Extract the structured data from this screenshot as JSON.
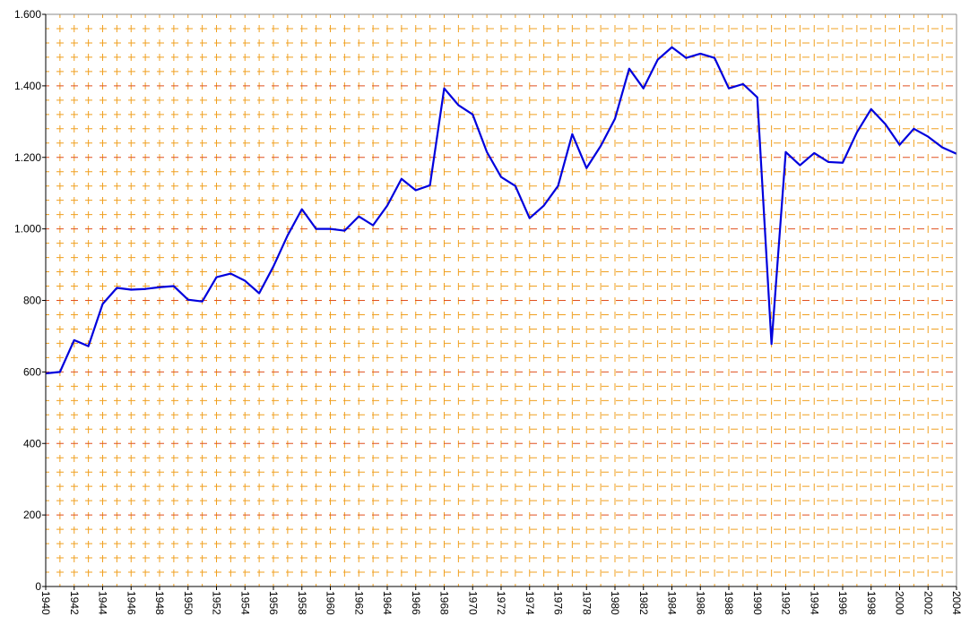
{
  "chart_data": {
    "type": "line",
    "x": [
      1940,
      1941,
      1942,
      1943,
      1944,
      1945,
      1946,
      1947,
      1948,
      1949,
      1950,
      1951,
      1952,
      1953,
      1954,
      1955,
      1956,
      1957,
      1958,
      1959,
      1960,
      1961,
      1962,
      1963,
      1964,
      1965,
      1966,
      1967,
      1968,
      1969,
      1970,
      1971,
      1972,
      1973,
      1974,
      1975,
      1976,
      1977,
      1978,
      1979,
      1980,
      1981,
      1982,
      1983,
      1984,
      1985,
      1986,
      1987,
      1988,
      1989,
      1990,
      1991,
      1992,
      1993,
      1994,
      1995,
      1996,
      1997,
      1998,
      1999,
      2000,
      2001,
      2002,
      2003,
      2004
    ],
    "series": [
      {
        "color": "#0000dd",
        "values": [
          596,
          600,
          689,
          672,
          790,
          835,
          830,
          832,
          837,
          840,
          802,
          797,
          865,
          875,
          855,
          820,
          895,
          982,
          1055,
          1000,
          1000,
          995,
          1035,
          1010,
          1065,
          1140,
          1108,
          1122,
          1393,
          1346,
          1320,
          1215,
          1145,
          1120,
          1030,
          1065,
          1120,
          1265,
          1170,
          1232,
          1308,
          1448,
          1393,
          1473,
          1508,
          1478,
          1490,
          1478,
          1393,
          1405,
          1368,
          678,
          1215,
          1178,
          1212,
          1187,
          1185,
          1270,
          1335,
          1293,
          1235,
          1280,
          1258,
          1228,
          1210
        ]
      }
    ],
    "xlim": [
      1940,
      2004
    ],
    "xticks": [
      1940,
      1942,
      1944,
      1946,
      1948,
      1950,
      1952,
      1954,
      1956,
      1958,
      1960,
      1962,
      1964,
      1966,
      1968,
      1970,
      1972,
      1974,
      1976,
      1978,
      1980,
      1982,
      1984,
      1986,
      1988,
      1990,
      1992,
      1994,
      1996,
      1998,
      2000,
      2002,
      2004
    ],
    "ylim": [
      0,
      1600
    ],
    "yticks": [
      0,
      200,
      400,
      600,
      800,
      {
        "value": 1000,
        "label": "1.000"
      },
      {
        "value": 1200,
        "label": "1.200"
      },
      {
        "value": 1400,
        "label": "1.400"
      },
      {
        "value": 1600,
        "label": "1.600"
      }
    ],
    "grid": true
  }
}
